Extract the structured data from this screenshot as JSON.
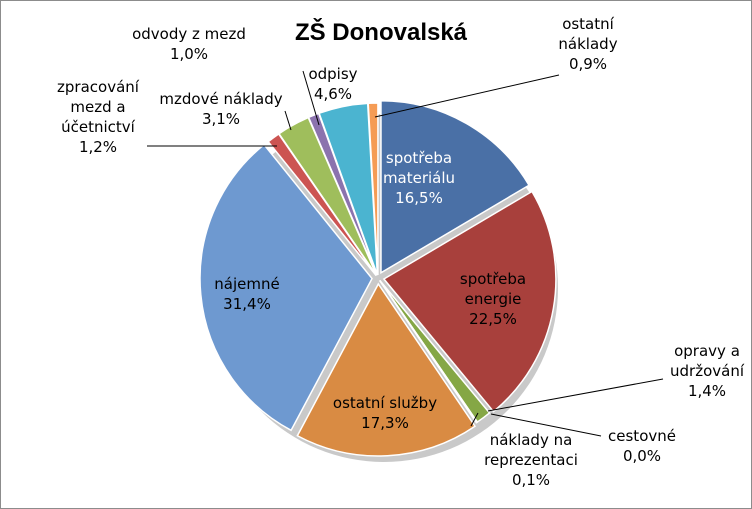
{
  "chart_data": {
    "type": "pie",
    "title": "ZŠ Donovalská",
    "slices": [
      {
        "label": "spotřeba materiálu",
        "value": 16.5,
        "value_label": "16,5%",
        "color": "#4a70a6"
      },
      {
        "label": "spotřeba energie",
        "value": 22.5,
        "value_label": "22,5%",
        "color": "#a8403c"
      },
      {
        "label": "opravy a udržování",
        "value": 1.4,
        "value_label": "1,4%",
        "color": "#85a745"
      },
      {
        "label": "cestovné",
        "value": 0.0,
        "value_label": "0,0%",
        "color": "#6f5796"
      },
      {
        "label": "náklady na reprezentaci",
        "value": 0.1,
        "value_label": "0,1%",
        "color": "#3596b0"
      },
      {
        "label": "ostatní služby",
        "value": 17.3,
        "value_label": "17,3%",
        "color": "#d98b43"
      },
      {
        "label": "nájemné",
        "value": 31.4,
        "value_label": "31,4%",
        "color": "#6e99d0"
      },
      {
        "label": "zpracování mezd a účetnictví",
        "value": 1.2,
        "value_label": "1,2%",
        "color": "#cc5452"
      },
      {
        "label": "mzdové náklady",
        "value": 3.1,
        "value_label": "3,1%",
        "color": "#9fbe5c"
      },
      {
        "label": "odvody z mezd",
        "value": 1.0,
        "value_label": "1,0%",
        "color": "#8b73ae"
      },
      {
        "label": "odpisy",
        "value": 4.6,
        "value_label": "4,6%",
        "color": "#4bb4d0"
      },
      {
        "label": "ostatní náklady",
        "value": 0.9,
        "value_label": "0,9%",
        "color": "#f59c55"
      }
    ]
  }
}
